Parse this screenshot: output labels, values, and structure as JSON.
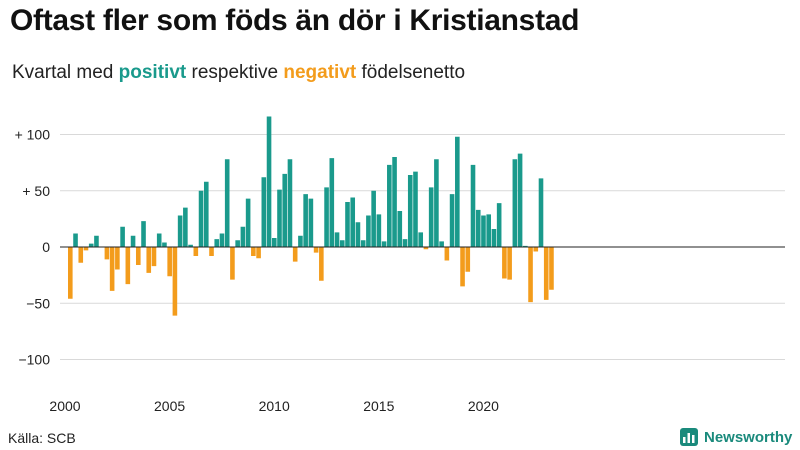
{
  "chart_data": {
    "type": "bar",
    "title": "Oftast fler som föds än dör i Kristianstad",
    "subtitle": {
      "prefix": "Kvartal med ",
      "positive": "positivt",
      "middle": " respektive ",
      "negative": "negativt",
      "suffix": " födelsenetto"
    },
    "positive_color": "#1a9a8c",
    "negative_color": "#f39c1c",
    "start_year": 2000,
    "ylim": [
      -110,
      120
    ],
    "y_ticks": [
      {
        "value": 100,
        "label": "+ 100"
      },
      {
        "value": 50,
        "label": "+  50"
      },
      {
        "value": 0,
        "label": "0"
      },
      {
        "value": -50,
        "label": "−50"
      },
      {
        "value": -100,
        "label": "−100"
      }
    ],
    "x_ticks": [
      {
        "year": 2000,
        "label": "2000"
      },
      {
        "year": 2005,
        "label": "2005"
      },
      {
        "year": 2010,
        "label": "2010"
      },
      {
        "year": 2015,
        "label": "2015"
      },
      {
        "year": 2020,
        "label": "2020"
      }
    ],
    "values": [
      -46,
      12,
      -14,
      -3,
      3,
      10,
      0,
      -11,
      -39,
      -20,
      18,
      -33,
      10,
      -16,
      23,
      -23,
      -17,
      12,
      4,
      -26,
      -61,
      28,
      35,
      2,
      -8,
      50,
      58,
      -8,
      7,
      12,
      78,
      -29,
      6,
      18,
      43,
      -8,
      -10,
      62,
      116,
      8,
      51,
      65,
      78,
      -13,
      10,
      47,
      43,
      -5,
      -30,
      53,
      79,
      13,
      6,
      40,
      44,
      22,
      6,
      28,
      50,
      29,
      5,
      73,
      80,
      32,
      7,
      64,
      67,
      13,
      -2,
      53,
      78,
      5,
      -12,
      47,
      98,
      -35,
      -22,
      73,
      33,
      28,
      29,
      16,
      39,
      -28,
      -29,
      78,
      83,
      1,
      -49,
      -4,
      61,
      -47,
      -38
    ]
  },
  "source": "Källa: SCB",
  "brand": "Newsworthy"
}
